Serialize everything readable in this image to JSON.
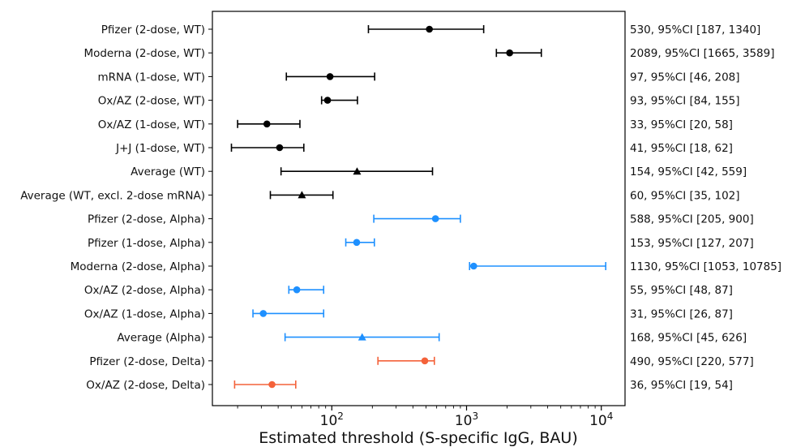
{
  "chart_data": {
    "type": "scatter",
    "xlabel": "Estimated threshold (S-specific IgG, BAU)",
    "xscale": "log",
    "xlim": [
      13,
      15000
    ],
    "xticks": [
      {
        "value": 100,
        "base": "10",
        "exp": "2"
      },
      {
        "value": 1000,
        "base": "10",
        "exp": "3"
      },
      {
        "value": 10000,
        "base": "10",
        "exp": "4"
      }
    ],
    "grid": false,
    "colors": {
      "WT": "#000000",
      "Alpha": "#1e90ff",
      "Delta": "#f4623a"
    },
    "rows": [
      {
        "label": "Pfizer (2-dose, WT)",
        "group": "WT",
        "marker": "circle",
        "estimate": 530,
        "ci": [
          187,
          1340
        ],
        "annotation": "530, 95%CI [187, 1340]"
      },
      {
        "label": "Moderna (2-dose, WT)",
        "group": "WT",
        "marker": "circle",
        "estimate": 2089,
        "ci": [
          1665,
          3589
        ],
        "annotation": "2089, 95%CI [1665, 3589]"
      },
      {
        "label": "mRNA (1-dose, WT)",
        "group": "WT",
        "marker": "circle",
        "estimate": 97,
        "ci": [
          46,
          208
        ],
        "annotation": "97, 95%CI [46, 208]"
      },
      {
        "label": "Ox/AZ (2-dose, WT)",
        "group": "WT",
        "marker": "circle",
        "estimate": 93,
        "ci": [
          84,
          155
        ],
        "annotation": "93, 95%CI [84, 155]"
      },
      {
        "label": "Ox/AZ (1-dose, WT)",
        "group": "WT",
        "marker": "circle",
        "estimate": 33,
        "ci": [
          20,
          58
        ],
        "annotation": "33, 95%CI [20, 58]"
      },
      {
        "label": "J+J (1-dose, WT)",
        "group": "WT",
        "marker": "circle",
        "estimate": 41,
        "ci": [
          18,
          62
        ],
        "annotation": "41, 95%CI [18, 62]"
      },
      {
        "label": "Average (WT)",
        "group": "WT",
        "marker": "triangle",
        "estimate": 154,
        "ci": [
          42,
          559
        ],
        "annotation": "154, 95%CI [42, 559]"
      },
      {
        "label": "Average (WT, excl. 2-dose mRNA)",
        "group": "WT",
        "marker": "triangle",
        "estimate": 60,
        "ci": [
          35,
          102
        ],
        "annotation": "60, 95%CI [35, 102]"
      },
      {
        "label": "Pfizer (2-dose, Alpha)",
        "group": "Alpha",
        "marker": "circle",
        "estimate": 588,
        "ci": [
          205,
          900
        ],
        "annotation": "588, 95%CI [205, 900]"
      },
      {
        "label": "Pfizer (1-dose, Alpha)",
        "group": "Alpha",
        "marker": "circle",
        "estimate": 153,
        "ci": [
          127,
          207
        ],
        "annotation": "153, 95%CI [127, 207]"
      },
      {
        "label": "Moderna (2-dose, Alpha)",
        "group": "Alpha",
        "marker": "circle",
        "estimate": 1130,
        "ci": [
          1053,
          10785
        ],
        "annotation": "1130, 95%CI [1053, 10785]"
      },
      {
        "label": "Ox/AZ (2-dose, Alpha)",
        "group": "Alpha",
        "marker": "circle",
        "estimate": 55,
        "ci": [
          48,
          87
        ],
        "annotation": "55, 95%CI [48, 87]"
      },
      {
        "label": "Ox/AZ (1-dose, Alpha)",
        "group": "Alpha",
        "marker": "circle",
        "estimate": 31,
        "ci": [
          26,
          87
        ],
        "annotation": "31, 95%CI [26, 87]"
      },
      {
        "label": "Average (Alpha)",
        "group": "Alpha",
        "marker": "triangle",
        "estimate": 168,
        "ci": [
          45,
          626
        ],
        "annotation": "168, 95%CI [45, 626]"
      },
      {
        "label": "Pfizer (2-dose, Delta)",
        "group": "Delta",
        "marker": "circle",
        "estimate": 490,
        "ci": [
          220,
          577
        ],
        "annotation": "490, 95%CI [220, 577]"
      },
      {
        "label": "Ox/AZ (2-dose, Delta)",
        "group": "Delta",
        "marker": "circle",
        "estimate": 36,
        "ci": [
          19,
          54
        ],
        "annotation": "36, 95%CI [19, 54]"
      }
    ]
  }
}
